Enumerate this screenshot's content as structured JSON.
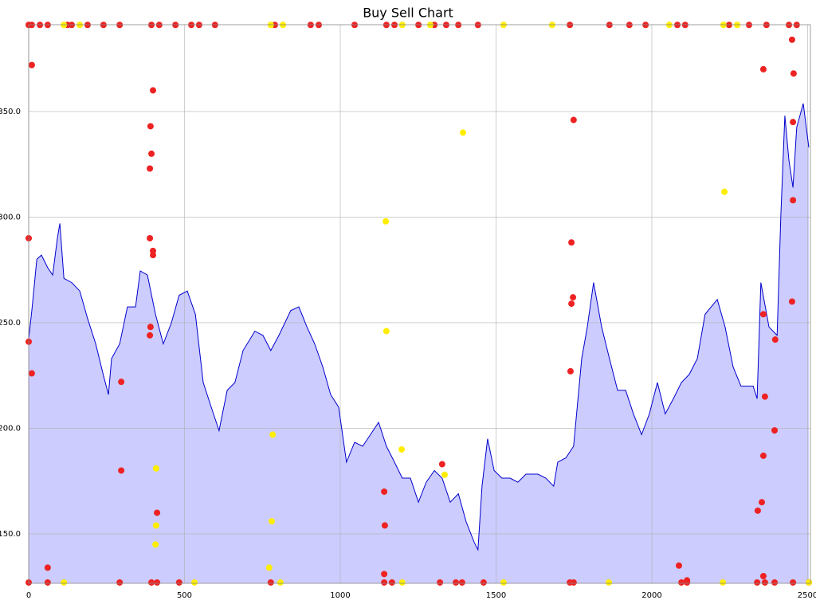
{
  "chart_data": {
    "type": "line",
    "title": "Buy Sell Chart",
    "color": "#0000cc",
    "fill": "#ccccff",
    "grid": true,
    "xlim": [
      0,
      2509
    ],
    "ylim": [
      126.6,
      391.1
    ],
    "xticks": [
      0,
      500,
      1000,
      1500,
      2000,
      2500
    ],
    "yticks": [
      {
        "value": 150,
        "label": "150.0"
      },
      {
        "value": 200,
        "label": "200.0"
      },
      {
        "value": 250,
        "label": "250.0"
      },
      {
        "value": 300,
        "label": "300.0"
      },
      {
        "value": 350,
        "label": "350.0"
      }
    ],
    "x": [
      0,
      10,
      26,
      41,
      61,
      77,
      92,
      100,
      113,
      138,
      164,
      189,
      215,
      240,
      256,
      266,
      292,
      317,
      343,
      358,
      381,
      407,
      432,
      458,
      483,
      509,
      535,
      560,
      586,
      611,
      637,
      662,
      688,
      726,
      752,
      777,
      803,
      841,
      867,
      893,
      918,
      944,
      969,
      995,
      1020,
      1046,
      1072,
      1097,
      1123,
      1148,
      1174,
      1199,
      1225,
      1251,
      1276,
      1302,
      1327,
      1353,
      1379,
      1404,
      1430,
      1442,
      1455,
      1473,
      1494,
      1519,
      1545,
      1570,
      1596,
      1634,
      1660,
      1685,
      1698,
      1724,
      1749,
      1775,
      1793,
      1813,
      1839,
      1864,
      1890,
      1916,
      1941,
      1967,
      1992,
      2018,
      2043,
      2069,
      2095,
      2120,
      2146,
      2171,
      2210,
      2235,
      2261,
      2286,
      2325,
      2338,
      2350,
      2376,
      2402,
      2414,
      2427,
      2440,
      2453,
      2465,
      2486,
      2504
    ],
    "values": [
      242.4,
      255.6,
      280,
      282,
      276,
      272.6,
      290,
      297,
      271,
      269,
      265,
      252,
      240,
      225,
      216,
      233,
      240,
      257.5,
      257.5,
      274.5,
      272.6,
      254,
      240,
      250,
      263,
      265,
      254,
      221.7,
      210,
      198.9,
      218,
      221.7,
      236.8,
      246,
      244,
      236.8,
      244,
      255.7,
      257.5,
      248,
      240,
      229,
      216,
      210,
      184,
      193.4,
      191.5,
      197,
      202.8,
      191.5,
      184,
      176.4,
      176.4,
      165,
      174.5,
      180,
      176.4,
      165,
      169,
      155.7,
      146,
      142.5,
      172.6,
      195,
      180,
      176.4,
      176.4,
      174.5,
      178.3,
      178.3,
      176.4,
      172.6,
      184,
      186,
      191.5,
      233,
      248,
      269,
      248,
      233,
      218,
      218,
      206.8,
      197,
      206.8,
      221.7,
      206.8,
      214,
      221.7,
      225.5,
      233,
      254,
      261,
      248,
      229,
      220,
      220,
      214,
      269,
      248,
      244,
      301,
      348,
      327,
      314,
      342.5,
      353.8,
      333
    ],
    "scatter": [
      {
        "color": "#ee2222",
        "x": [
          0,
          10,
          0,
          10,
          61,
          297,
          297,
          399,
          391,
          394,
          389,
          389,
          399,
          399,
          391,
          389,
          412,
          1141,
          1143,
          1141,
          1327,
          1742,
          1749,
          1747,
          1742,
          1739,
          2087,
          2113,
          2358,
          2450,
          2455,
          2453,
          2453,
          2450,
          2358,
          2396,
          2363,
          2394,
          2358,
          2353,
          2340,
          2358,
          0,
          10,
          36,
          61,
          125,
          138,
          189,
          240,
          292,
          394,
          419,
          471,
          522,
          547,
          598,
          790,
          905,
          931,
          1046,
          1148,
          1174,
          1251,
          1302,
          1340,
          1379,
          1442,
          1737,
          1864,
          1928,
          1980,
          2082,
          2107,
          2248,
          2312,
          2368,
          2440,
          2465,
          0,
          61,
          292,
          394,
          412,
          483,
          777,
          1141,
          1166,
          1320,
          1371,
          1391,
          1460,
          1737,
          1749,
          2095,
          2113,
          2338,
          2363,
          2394,
          2453,
          2504
        ],
        "values": [
          290,
          372,
          241,
          226,
          134,
          222,
          180,
          360,
          343,
          330,
          323,
          290,
          284,
          282,
          248,
          244,
          160,
          170,
          154,
          131,
          183,
          288,
          346,
          262,
          259,
          227,
          135,
          128,
          370,
          384,
          368,
          345,
          308,
          260,
          254,
          242,
          215,
          199,
          187,
          165,
          161,
          130,
          391,
          391,
          391,
          391,
          391,
          391,
          391,
          391,
          391,
          391,
          391,
          391,
          391,
          391,
          391,
          391,
          391,
          391,
          391,
          391,
          391,
          391,
          391,
          391,
          391,
          391,
          391,
          391,
          391,
          391,
          391,
          391,
          391,
          391,
          391,
          391,
          391,
          127,
          127,
          127,
          127,
          127,
          127,
          127,
          127,
          127,
          127,
          127,
          127,
          127,
          127,
          127,
          127,
          127,
          127,
          127,
          127,
          127,
          127
        ]
      },
      {
        "color": "#ffee00",
        "x": [
          1394,
          1146,
          1148,
          1197,
          1335,
          783,
          780,
          772,
          409,
          409,
          407,
          2233,
          113,
          164,
          777,
          816,
          1199,
          1289,
          1524,
          1680,
          2056,
          2230,
          2274,
          113,
          532,
          808,
          1199,
          1524,
          1862,
          2228,
          2504
        ],
        "values": [
          340,
          298,
          246,
          190,
          178,
          197,
          156,
          134,
          181,
          154,
          145,
          312,
          391,
          391,
          391,
          391,
          391,
          391,
          391,
          391,
          391,
          391,
          391,
          127,
          127,
          127,
          127,
          127,
          127,
          127,
          127
        ]
      }
    ]
  }
}
